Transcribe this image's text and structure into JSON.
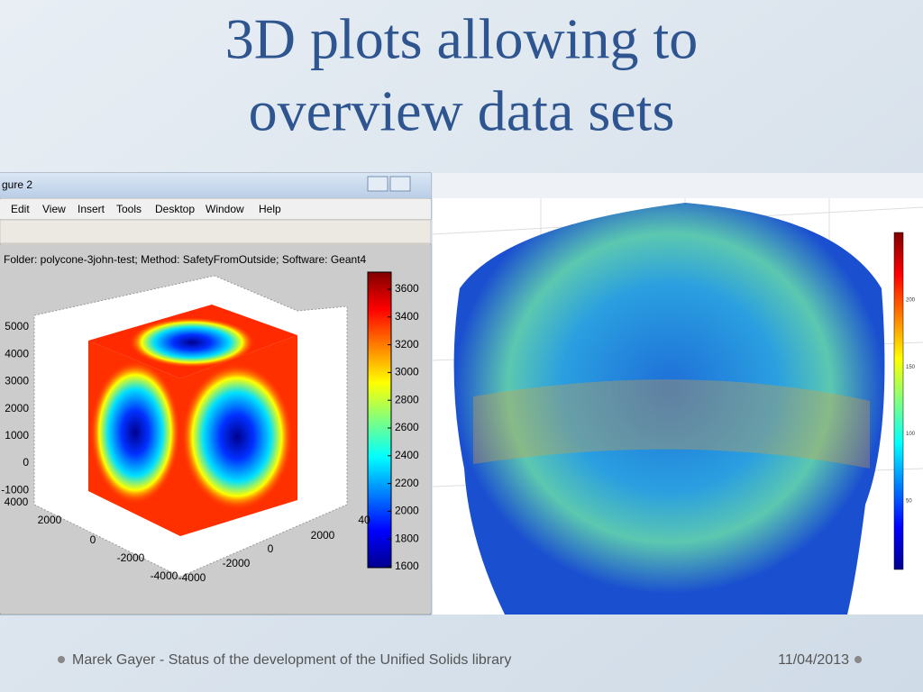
{
  "title": [
    "3D plots allowing to",
    "overview data sets"
  ],
  "left_figure": {
    "window_title": "gure 2",
    "menu": [
      "Edit",
      "View",
      "Insert",
      "Tools",
      "Desktop",
      "Window",
      "Help"
    ],
    "plot_title": "Folder: polycone-3john-test; Method: SafetyFromOutside; Software: Geant4",
    "z_ticks": [
      5000,
      4000,
      3000,
      2000,
      1000,
      0,
      -1000
    ],
    "x_ticks": [
      4000,
      2000,
      0,
      -2000,
      -4000
    ],
    "y_ticks": [
      -4000,
      -2000,
      0,
      2000,
      "40"
    ],
    "colorbar_ticks": [
      3600,
      3400,
      3200,
      3000,
      2800,
      2600,
      2400,
      2200,
      2000,
      1800,
      1600
    ]
  },
  "right_figure": {
    "colorbar_ticks": [
      200,
      150,
      100,
      50
    ]
  },
  "footer": {
    "text": "Marek Gayer - Status of the development of the Unified Solids library",
    "date": "11/04/2013"
  }
}
